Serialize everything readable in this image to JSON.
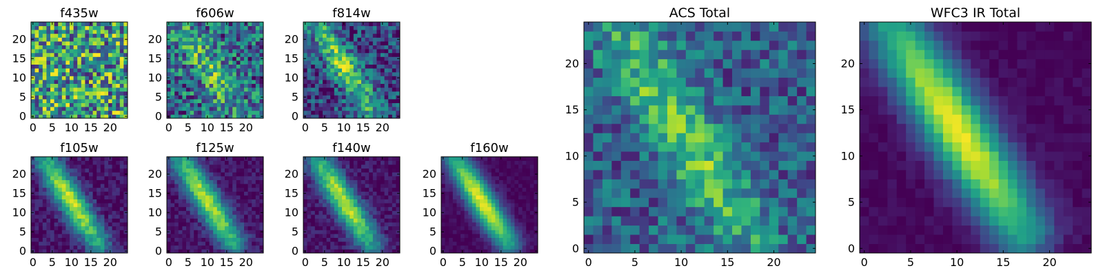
{
  "chart_data": [
    {
      "type": "heatmap",
      "title": "f435w",
      "xticks": [
        "0",
        "5",
        "10",
        "15",
        "20"
      ],
      "yticks": [
        "0",
        "5",
        "10",
        "15",
        "20"
      ],
      "xlim": [
        -0.5,
        24.5
      ],
      "ylim": [
        -0.5,
        24.5
      ],
      "grid": false,
      "colormap": "viridis",
      "pattern": {
        "kind": "noise",
        "signal": 0.0,
        "noise": 0.9,
        "base": 0.55
      },
      "values": []
    },
    {
      "type": "heatmap",
      "title": "f606w",
      "xticks": [
        "0",
        "5",
        "10",
        "15",
        "20"
      ],
      "yticks": [
        "0",
        "5",
        "10",
        "15",
        "20"
      ],
      "xlim": [
        -0.5,
        24.5
      ],
      "ylim": [
        -0.5,
        24.5
      ],
      "grid": false,
      "colormap": "viridis",
      "pattern": {
        "kind": "band",
        "signal": 0.3,
        "noise": 0.7,
        "base": 0.35
      },
      "values": []
    },
    {
      "type": "heatmap",
      "title": "f814w",
      "xticks": [
        "0",
        "5",
        "10",
        "15",
        "20"
      ],
      "yticks": [
        "0",
        "5",
        "10",
        "15",
        "20"
      ],
      "xlim": [
        -0.5,
        24.5
      ],
      "ylim": [
        -0.5,
        24.5
      ],
      "grid": false,
      "colormap": "viridis",
      "pattern": {
        "kind": "band",
        "signal": 0.6,
        "noise": 0.55,
        "base": 0.2
      },
      "values": []
    },
    {
      "type": "heatmap",
      "title": "f105w",
      "xticks": [
        "0",
        "5",
        "10",
        "15",
        "20"
      ],
      "yticks": [
        "0",
        "5",
        "10",
        "15",
        "20"
      ],
      "xlim": [
        -0.5,
        24.5
      ],
      "ylim": [
        -0.5,
        24.5
      ],
      "grid": false,
      "colormap": "viridis",
      "pattern": {
        "kind": "band",
        "signal": 0.85,
        "noise": 0.22,
        "base": 0.05
      },
      "values": []
    },
    {
      "type": "heatmap",
      "title": "f125w",
      "xticks": [
        "0",
        "5",
        "10",
        "15",
        "20"
      ],
      "yticks": [
        "0",
        "5",
        "10",
        "15",
        "20"
      ],
      "xlim": [
        -0.5,
        24.5
      ],
      "ylim": [
        -0.5,
        24.5
      ],
      "grid": false,
      "colormap": "viridis",
      "pattern": {
        "kind": "band",
        "signal": 0.85,
        "noise": 0.2,
        "base": 0.05
      },
      "values": []
    },
    {
      "type": "heatmap",
      "title": "f140w",
      "xticks": [
        "0",
        "5",
        "10",
        "15",
        "20"
      ],
      "yticks": [
        "0",
        "5",
        "10",
        "15",
        "20"
      ],
      "xlim": [
        -0.5,
        24.5
      ],
      "ylim": [
        -0.5,
        24.5
      ],
      "grid": false,
      "colormap": "viridis",
      "pattern": {
        "kind": "band",
        "signal": 0.85,
        "noise": 0.2,
        "base": 0.05
      },
      "values": []
    },
    {
      "type": "heatmap",
      "title": "f160w",
      "xticks": [
        "0",
        "5",
        "10",
        "15",
        "20"
      ],
      "yticks": [
        "0",
        "5",
        "10",
        "15",
        "20"
      ],
      "xlim": [
        -0.5,
        24.5
      ],
      "ylim": [
        -0.5,
        24.5
      ],
      "grid": false,
      "colormap": "viridis",
      "pattern": {
        "kind": "band",
        "signal": 0.95,
        "noise": 0.1,
        "base": 0.02
      },
      "values": []
    },
    {
      "type": "heatmap",
      "title": "ACS Total",
      "xticks": [
        "0",
        "5",
        "10",
        "15",
        "20"
      ],
      "yticks": [
        "0",
        "5",
        "10",
        "15",
        "20"
      ],
      "xlim": [
        -0.5,
        24.5
      ],
      "ylim": [
        -0.5,
        24.5
      ],
      "grid": false,
      "colormap": "viridis",
      "pattern": {
        "kind": "band",
        "signal": 0.45,
        "noise": 0.45,
        "base": 0.3
      },
      "values": []
    },
    {
      "type": "heatmap",
      "title": "WFC3 IR Total",
      "xticks": [
        "0",
        "5",
        "10",
        "15",
        "20"
      ],
      "yticks": [
        "0",
        "5",
        "10",
        "15",
        "20"
      ],
      "xlim": [
        -0.5,
        24.5
      ],
      "ylim": [
        -0.5,
        24.5
      ],
      "grid": false,
      "colormap": "viridis",
      "pattern": {
        "kind": "band",
        "signal": 0.95,
        "noise": 0.08,
        "base": 0.02
      },
      "values": []
    }
  ]
}
